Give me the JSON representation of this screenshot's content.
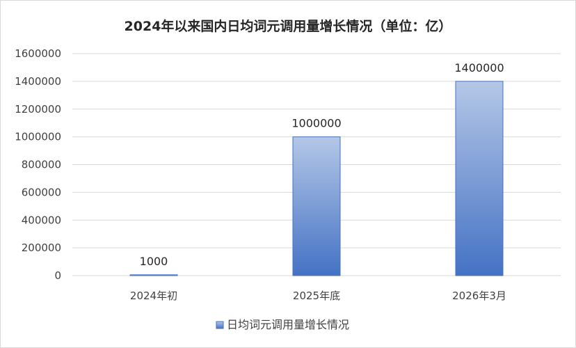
{
  "chart_data": {
    "type": "bar",
    "title": "2024年以来国内日均词元调用量增长情况（单位：亿）",
    "categories": [
      "2024年初",
      "2025年底",
      "2026年3月"
    ],
    "series": [
      {
        "name": "日均词元调用量增长情况",
        "values": [
          1000,
          1000000,
          1400000
        ]
      }
    ],
    "data_labels": [
      "1000",
      "1000000",
      "1400000"
    ],
    "y_ticks": [
      "0",
      "200000",
      "400000",
      "600000",
      "800000",
      "1000000",
      "1200000",
      "1400000",
      "1600000"
    ],
    "ylim": [
      0,
      1600000
    ],
    "grid": true,
    "legend_position": "bottom",
    "colors": {
      "bar_top": "#b4c7e7",
      "bar_bottom": "#4472c4",
      "bar_edge": "#4472c4",
      "grid": "#d9d9d9"
    }
  }
}
